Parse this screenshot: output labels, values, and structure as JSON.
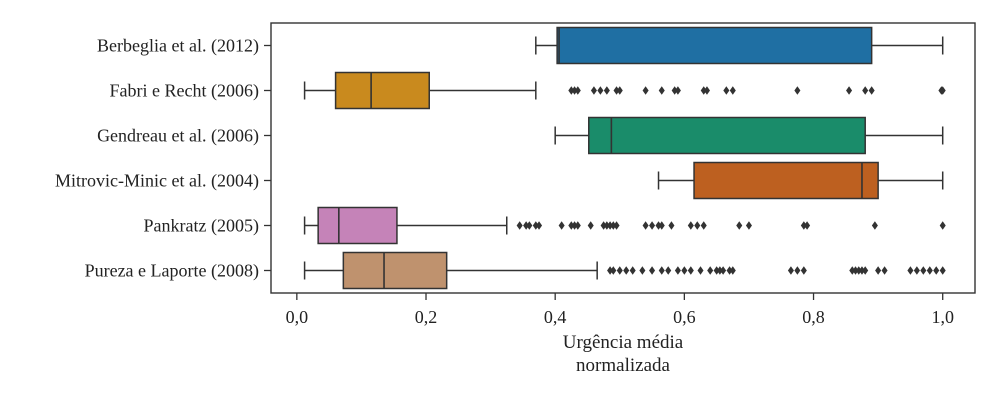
{
  "chart_data": {
    "type": "boxplot",
    "orientation": "horizontal",
    "xlabel_lines": [
      "Urgência média",
      "normalizada"
    ],
    "xlim": [
      -0.04,
      1.05
    ],
    "xticks": [
      0.0,
      0.2,
      0.4,
      0.6,
      0.8,
      1.0
    ],
    "xtick_labels": [
      "0,0",
      "0,2",
      "0,4",
      "0,6",
      "0,8",
      "1,0"
    ],
    "categories": [
      "Berbeglia et al. (2012)",
      "Fabri e Recht (2006)",
      "Gendreau et al. (2006)",
      "Mitrovic-Minic et al. (2004)",
      "Pankratz (2005)",
      "Pureza e Laporte (2008)"
    ],
    "series": [
      {
        "label": "Berbeglia et al. (2012)",
        "color": "#1f6fa3",
        "whisker_low": 0.37,
        "q1": 0.403,
        "median": 0.406,
        "q3": 0.89,
        "whisker_high": 1.0,
        "outliers": []
      },
      {
        "label": "Fabri e Recht (2006)",
        "color": "#c98a1e",
        "whisker_low": 0.012,
        "q1": 0.06,
        "median": 0.115,
        "q3": 0.205,
        "whisker_high": 0.37,
        "outliers": [
          0.425,
          0.43,
          0.435,
          0.46,
          0.47,
          0.48,
          0.495,
          0.5,
          0.54,
          0.565,
          0.585,
          0.59,
          0.63,
          0.635,
          0.665,
          0.675,
          0.775,
          0.855,
          0.88,
          0.89,
          0.998,
          1.0
        ]
      },
      {
        "label": "Gendreau et al. (2006)",
        "color": "#1a8c6a",
        "whisker_low": 0.4,
        "q1": 0.452,
        "median": 0.487,
        "q3": 0.88,
        "whisker_high": 1.0,
        "outliers": []
      },
      {
        "label": "Mitrovic-Minic et al. (2004)",
        "color": "#bd6020",
        "whisker_low": 0.56,
        "q1": 0.615,
        "median": 0.875,
        "q3": 0.9,
        "whisker_high": 1.0,
        "outliers": []
      },
      {
        "label": "Pankratz (2005)",
        "color": "#c583b8",
        "whisker_low": 0.012,
        "q1": 0.033,
        "median": 0.065,
        "q3": 0.155,
        "whisker_high": 0.325,
        "outliers": [
          0.345,
          0.355,
          0.36,
          0.37,
          0.375,
          0.41,
          0.425,
          0.43,
          0.435,
          0.455,
          0.475,
          0.48,
          0.485,
          0.49,
          0.495,
          0.54,
          0.55,
          0.56,
          0.565,
          0.58,
          0.61,
          0.62,
          0.63,
          0.685,
          0.7,
          0.785,
          0.79,
          0.895,
          1.0
        ]
      },
      {
        "label": "Pureza e Laporte (2008)",
        "color": "#bf926e",
        "whisker_low": 0.012,
        "q1": 0.072,
        "median": 0.135,
        "q3": 0.232,
        "whisker_high": 0.465,
        "outliers": [
          0.485,
          0.49,
          0.5,
          0.51,
          0.52,
          0.535,
          0.55,
          0.565,
          0.575,
          0.59,
          0.6,
          0.61,
          0.625,
          0.64,
          0.65,
          0.655,
          0.66,
          0.67,
          0.675,
          0.765,
          0.775,
          0.785,
          0.86,
          0.865,
          0.87,
          0.875,
          0.88,
          0.9,
          0.91,
          0.95,
          0.96,
          0.97,
          0.98,
          0.99,
          1.0
        ]
      }
    ]
  }
}
